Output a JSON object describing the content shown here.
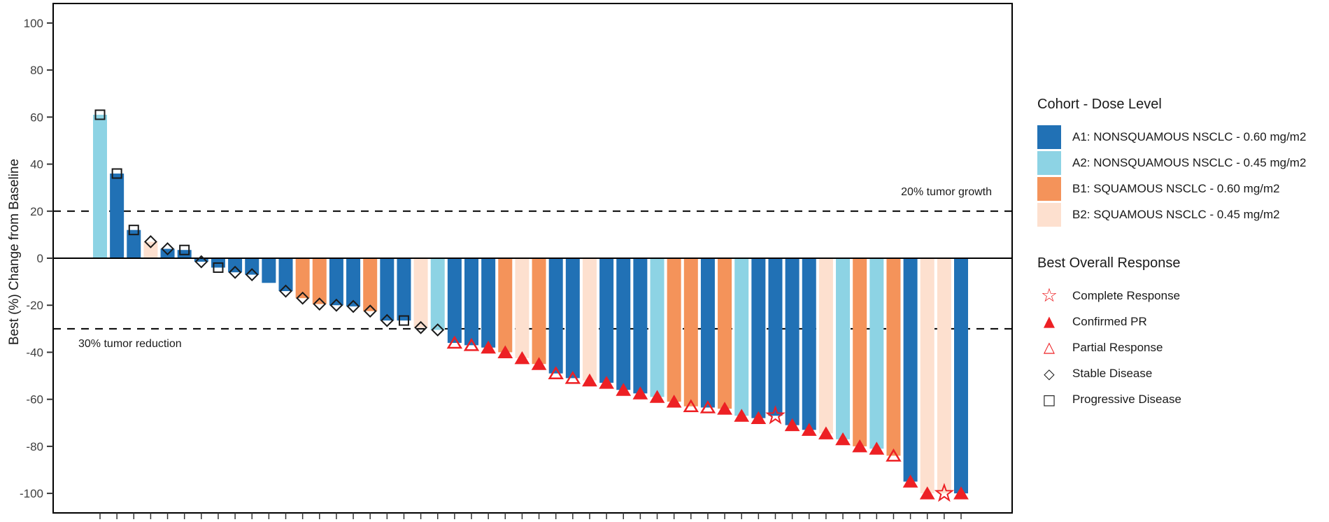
{
  "figure": {
    "y_axis_label": "Best (%) Change from Baseline"
  },
  "legend_cohort": {
    "title": "Cohort - Dose Level",
    "items": [
      {
        "cohort_id": "A1",
        "label": "A1: NONSQUAMOUS NSCLC - 0.60 mg/m2",
        "color": "#2171b5"
      },
      {
        "cohort_id": "A2",
        "label": "A2: NONSQUAMOUS NSCLC - 0.45 mg/m2",
        "color": "#8dd3e4"
      },
      {
        "cohort_id": "B1",
        "label": "B1: SQUAMOUS NSCLC - 0.60 mg/m2",
        "color": "#f4935a"
      },
      {
        "cohort_id": "B2",
        "label": "B2: SQUAMOUS NSCLC - 0.45 mg/m2",
        "color": "#fde0cf"
      }
    ]
  },
  "legend_response": {
    "title": "Best Overall Response",
    "items": [
      {
        "response_id": "CR",
        "label": "Complete Response",
        "glyph": "☆",
        "glyph_color": "#ed2024",
        "glyph_class": "glyph-star"
      },
      {
        "response_id": "cPR",
        "label": "Confirmed PR",
        "glyph": "▲",
        "glyph_color": "#ed2024",
        "glyph_class": "glyph-tri"
      },
      {
        "response_id": "PR",
        "label": "Partial Response",
        "glyph": "△",
        "glyph_color": "#ed2024",
        "glyph_class": "glyph-tri"
      },
      {
        "response_id": "SD",
        "label": "Stable Disease",
        "glyph": "◇",
        "glyph_color": "#1a1a1a",
        "glyph_class": "glyph-dia"
      },
      {
        "response_id": "PD",
        "label": "Progressive Disease",
        "glyph": "□",
        "glyph_color": "#1a1a1a",
        "glyph_class": "glyph-sq"
      }
    ]
  },
  "chart_data": {
    "type": "bar",
    "subtype": "waterfall-best-response",
    "title": "",
    "xlabel": "",
    "ylabel": "Best (%) Change from Baseline",
    "ylim": [
      -108.3,
      108.3
    ],
    "y_ticks": [
      100,
      80,
      60,
      40,
      20,
      0,
      -20,
      -40,
      -60,
      -80,
      -100
    ],
    "grid": false,
    "legend_position": "right",
    "annotations": {
      "growth_label": "20% tumor growth",
      "reduction_label": "30% tumor reduction"
    },
    "reference_lines": [
      {
        "y": 20,
        "style": "dashed",
        "color": "#000000"
      },
      {
        "y": 0,
        "style": "solid",
        "color": "#000000"
      },
      {
        "y": -30,
        "style": "dashed",
        "color": "#000000"
      }
    ],
    "cohort_colors": {
      "A1": "#2171b5",
      "A2": "#8dd3e4",
      "B1": "#f4935a",
      "B2": "#fde0cf"
    },
    "marker_color_red": "#ed2024",
    "marker_color_black": "#1a1a1a",
    "bars": [
      {
        "cohort": "A2",
        "response": "PD",
        "value": 61
      },
      {
        "cohort": "A1",
        "response": "PD",
        "value": 36
      },
      {
        "cohort": "A1",
        "response": "PD",
        "value": 12
      },
      {
        "cohort": "B2",
        "response": "SD",
        "value": 7
      },
      {
        "cohort": "A1",
        "response": "SD",
        "value": 4
      },
      {
        "cohort": "A1",
        "response": "PD",
        "value": 3.5
      },
      {
        "cohort": "A1",
        "response": "SD",
        "value": -1.5
      },
      {
        "cohort": "A1",
        "response": "PD",
        "value": -4
      },
      {
        "cohort": "A1",
        "response": "SD",
        "value": -6
      },
      {
        "cohort": "A1",
        "response": "SD",
        "value": -7
      },
      {
        "cohort": "A1",
        "response": "NONE",
        "value": -10.5
      },
      {
        "cohort": "A1",
        "response": "SD",
        "value": -14
      },
      {
        "cohort": "B1",
        "response": "SD",
        "value": -17
      },
      {
        "cohort": "B1",
        "response": "SD",
        "value": -19.5
      },
      {
        "cohort": "A1",
        "response": "SD",
        "value": -20
      },
      {
        "cohort": "A1",
        "response": "SD",
        "value": -20.5
      },
      {
        "cohort": "B1",
        "response": "SD",
        "value": -22.5
      },
      {
        "cohort": "A1",
        "response": "SD",
        "value": -26.5
      },
      {
        "cohort": "A1",
        "response": "PD",
        "value": -26.5
      },
      {
        "cohort": "B2",
        "response": "SD",
        "value": -29.5
      },
      {
        "cohort": "A2",
        "response": "SD",
        "value": -30.5
      },
      {
        "cohort": "A1",
        "response": "PR",
        "value": -36
      },
      {
        "cohort": "A1",
        "response": "PR",
        "value": -37
      },
      {
        "cohort": "A1",
        "response": "cPR",
        "value": -38
      },
      {
        "cohort": "B1",
        "response": "cPR",
        "value": -40
      },
      {
        "cohort": "B2",
        "response": "cPR",
        "value": -42.5
      },
      {
        "cohort": "B1",
        "response": "cPR",
        "value": -45
      },
      {
        "cohort": "A1",
        "response": "PR",
        "value": -49
      },
      {
        "cohort": "A1",
        "response": "PR",
        "value": -51
      },
      {
        "cohort": "B2",
        "response": "cPR",
        "value": -52
      },
      {
        "cohort": "A1",
        "response": "cPR",
        "value": -53
      },
      {
        "cohort": "A1",
        "response": "cPR",
        "value": -56
      },
      {
        "cohort": "A1",
        "response": "cPR",
        "value": -57.5
      },
      {
        "cohort": "A2",
        "response": "cPR",
        "value": -59
      },
      {
        "cohort": "B1",
        "response": "cPR",
        "value": -61
      },
      {
        "cohort": "B1",
        "response": "PR",
        "value": -63
      },
      {
        "cohort": "A1",
        "response": "PR",
        "value": -63.5
      },
      {
        "cohort": "B1",
        "response": "cPR",
        "value": -64
      },
      {
        "cohort": "A2",
        "response": "cPR",
        "value": -67
      },
      {
        "cohort": "A1",
        "response": "cPR",
        "value": -68
      },
      {
        "cohort": "A1",
        "response": "CR",
        "value": -67
      },
      {
        "cohort": "A1",
        "response": "cPR",
        "value": -71
      },
      {
        "cohort": "A1",
        "response": "cPR",
        "value": -73
      },
      {
        "cohort": "B2",
        "response": "cPR",
        "value": -74.5
      },
      {
        "cohort": "A2",
        "response": "cPR",
        "value": -77
      },
      {
        "cohort": "B1",
        "response": "cPR",
        "value": -80
      },
      {
        "cohort": "A2",
        "response": "cPR",
        "value": -81
      },
      {
        "cohort": "B1",
        "response": "PR",
        "value": -84
      },
      {
        "cohort": "A1",
        "response": "cPR",
        "value": -95
      },
      {
        "cohort": "B2",
        "response": "cPR",
        "value": -100
      },
      {
        "cohort": "B2",
        "response": "CR",
        "value": -100
      },
      {
        "cohort": "A1",
        "response": "cPR",
        "value": -100
      }
    ]
  }
}
